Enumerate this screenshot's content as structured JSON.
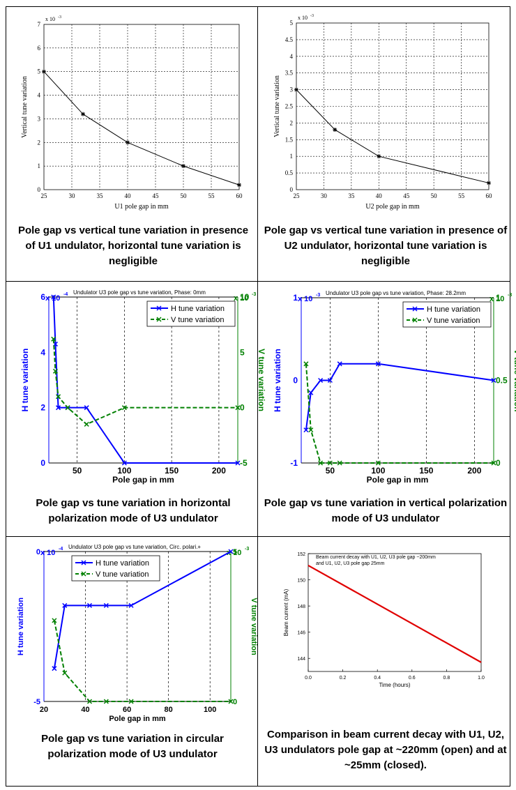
{
  "chart_data": [
    {
      "type": "line",
      "xlabel": "U1 pole gap in mm",
      "ylabel": "Vertical tune variation",
      "exponent_label": "x 10",
      "exponent_power": "-3",
      "xlim": [
        25,
        60
      ],
      "ylim": [
        0,
        7
      ],
      "xticks": [
        25,
        30,
        35,
        40,
        45,
        50,
        55,
        60
      ],
      "yticks": [
        0,
        1,
        2,
        3,
        4,
        5,
        6,
        7
      ],
      "grid": true,
      "series": [
        {
          "x": [
            25,
            32,
            40,
            50,
            60
          ],
          "y": [
            5.0,
            3.2,
            2.0,
            1.0,
            0.2
          ],
          "color": "#000000"
        }
      ]
    },
    {
      "type": "line",
      "xlabel": "U2 pole gap in mm",
      "ylabel": "Vertical tune variation",
      "exponent_label": "x 10",
      "exponent_power": "-3",
      "xlim": [
        25,
        60
      ],
      "ylim": [
        0,
        5
      ],
      "xticks": [
        25,
        30,
        35,
        40,
        45,
        50,
        55,
        60
      ],
      "yticks": [
        0,
        0.5,
        1,
        1.5,
        2,
        2.5,
        3,
        3.5,
        4,
        4.5,
        5
      ],
      "grid": true,
      "series": [
        {
          "x": [
            25,
            32,
            40,
            60
          ],
          "y": [
            3.0,
            1.8,
            1.0,
            0.2
          ],
          "color": "#000000"
        }
      ]
    },
    {
      "type": "line",
      "title": "Undulator U3 pole gap vs tune variation, Phase: 0mm",
      "xlabel": "Pole gap in mm",
      "ylabel": "H tune variation",
      "y2label": "V tune variation",
      "exponent_label": "x 10",
      "exponent_power": "-4",
      "exponent2_label": "x 10",
      "exponent2_power": "-3",
      "xlim": [
        20,
        220
      ],
      "ylim": [
        0,
        6
      ],
      "y2lim": [
        -5,
        10
      ],
      "xticks": [
        50,
        100,
        150,
        200
      ],
      "xtick_labels": [
        "50",
        "100",
        "150",
        "200"
      ],
      "yticks": [
        0,
        2,
        4,
        6
      ],
      "y2ticks": [
        -5,
        0,
        5,
        10
      ],
      "legend": "top-right",
      "series": [
        {
          "name": "H tune variation",
          "axis": "left",
          "x": [
            25,
            27,
            30,
            40,
            60,
            100,
            220
          ],
          "y": [
            6.0,
            4.3,
            2.0,
            2.0,
            2.0,
            0.0,
            0.0
          ],
          "color": "#0000ff",
          "dash": false
        },
        {
          "name": "V tune variation",
          "axis": "right",
          "x": [
            25,
            27,
            30,
            40,
            60,
            100,
            220
          ],
          "y": [
            6.2,
            3.3,
            1.0,
            0.0,
            -1.5,
            0.0,
            0.0
          ],
          "color": "#008000",
          "dash": true
        }
      ]
    },
    {
      "type": "line",
      "title": "Undulator U3 pole gap vs tune variation, Phase: 28.2mm",
      "xlabel": "Pole gap in mm",
      "ylabel": "H tune variation",
      "y2label": "V tune variation",
      "exponent_label": "x 10",
      "exponent_power": "-3",
      "exponent2_label": "x 10",
      "exponent2_power": "-3",
      "xlim": [
        20,
        220
      ],
      "ylim": [
        -1,
        1
      ],
      "y2lim": [
        0,
        1
      ],
      "xticks": [
        50,
        100,
        150,
        200
      ],
      "xtick_labels": [
        "50",
        "100",
        "150",
        "200"
      ],
      "yticks": [
        -1,
        0,
        1
      ],
      "y2ticks": [
        0,
        0.5,
        1
      ],
      "legend": "top-right",
      "series": [
        {
          "name": "H tune variation",
          "axis": "left",
          "x": [
            25,
            30,
            40,
            50,
            60,
            100,
            220
          ],
          "y": [
            -0.6,
            -0.15,
            0.0,
            0.0,
            0.2,
            0.2,
            0.0
          ],
          "color": "#0000ff",
          "dash": false
        },
        {
          "name": "V tune variation",
          "axis": "right",
          "x": [
            25,
            30,
            40,
            50,
            60,
            100,
            220
          ],
          "y": [
            0.6,
            0.2,
            0.0,
            0.0,
            0.0,
            0.0,
            0.0
          ],
          "color": "#008000",
          "dash": true
        }
      ]
    },
    {
      "type": "line",
      "title": "Undulator U3 pole gap vs tune variation, Circ. polari.+",
      "xlabel": "Pole gap in mm",
      "ylabel": "H tune variation",
      "y2label": "V tune variation",
      "exponent_label": "x 10",
      "exponent_power": "-4",
      "exponent2_label": "x 10",
      "exponent2_power": "-3",
      "xlim": [
        20,
        110
      ],
      "ylim": [
        -5,
        0
      ],
      "y2lim": [
        0,
        5
      ],
      "xticks": [
        20,
        40,
        60,
        80,
        100
      ],
      "xtick_labels": [
        "20",
        "40",
        "60",
        "80",
        "100"
      ],
      "yticks": [
        -5,
        0
      ],
      "y2ticks": [
        0,
        5
      ],
      "legend": "top-left",
      "series": [
        {
          "name": "H tune variation",
          "axis": "left",
          "x": [
            25,
            30,
            42,
            50,
            62,
            110
          ],
          "y": [
            -3.9,
            -1.8,
            -1.8,
            -1.8,
            -1.8,
            0.0
          ],
          "color": "#0000ff",
          "dash": false
        },
        {
          "name": "V tune variation",
          "axis": "right",
          "x": [
            25,
            30,
            42,
            50,
            62,
            110
          ],
          "y": [
            2.7,
            0.95,
            0.0,
            0.0,
            0.0,
            0.0
          ],
          "color": "#008000",
          "dash": true
        }
      ]
    },
    {
      "type": "line",
      "annotation_line1": "Beam current decay with U1, U2, U3 pole gap ~200mm",
      "annotation_line2": "and U1, U2, U3 pole gap 25mm",
      "xlabel": "Time (hours)",
      "ylabel": "Beam current (mA)",
      "xlim": [
        0,
        1.0
      ],
      "ylim": [
        143,
        152
      ],
      "xticks": [
        0,
        0.2,
        0.4,
        0.6,
        0.8,
        1.0
      ],
      "xtick_labels": [
        "0.0",
        "0.2",
        "0.4",
        "0.6",
        "0.8",
        "1.0"
      ],
      "yticks": [
        144,
        146,
        148,
        150,
        152
      ],
      "grid": false,
      "series": [
        {
          "x": [
            0,
            1.0
          ],
          "y": [
            151.1,
            143.7
          ],
          "color": "#e00000"
        }
      ]
    }
  ],
  "captions": [
    "Pole gap vs vertical tune variation in presence of U1 undulator, horizontal tune variation is negligible",
    "Pole gap vs vertical tune variation in presence of U2 undulator, horizontal tune variation is negligible",
    "Pole gap vs tune variation in horizontal polarization mode of U3 undulator",
    "Pole gap vs tune variation in vertical polarization mode of U3 undulator",
    "Pole gap vs tune variation in circular polarization mode of U3 undulator",
    "Comparison in beam current decay with U1, U2, U3 undulators pole gap at ~220mm (open) and at ~25mm (closed)."
  ]
}
